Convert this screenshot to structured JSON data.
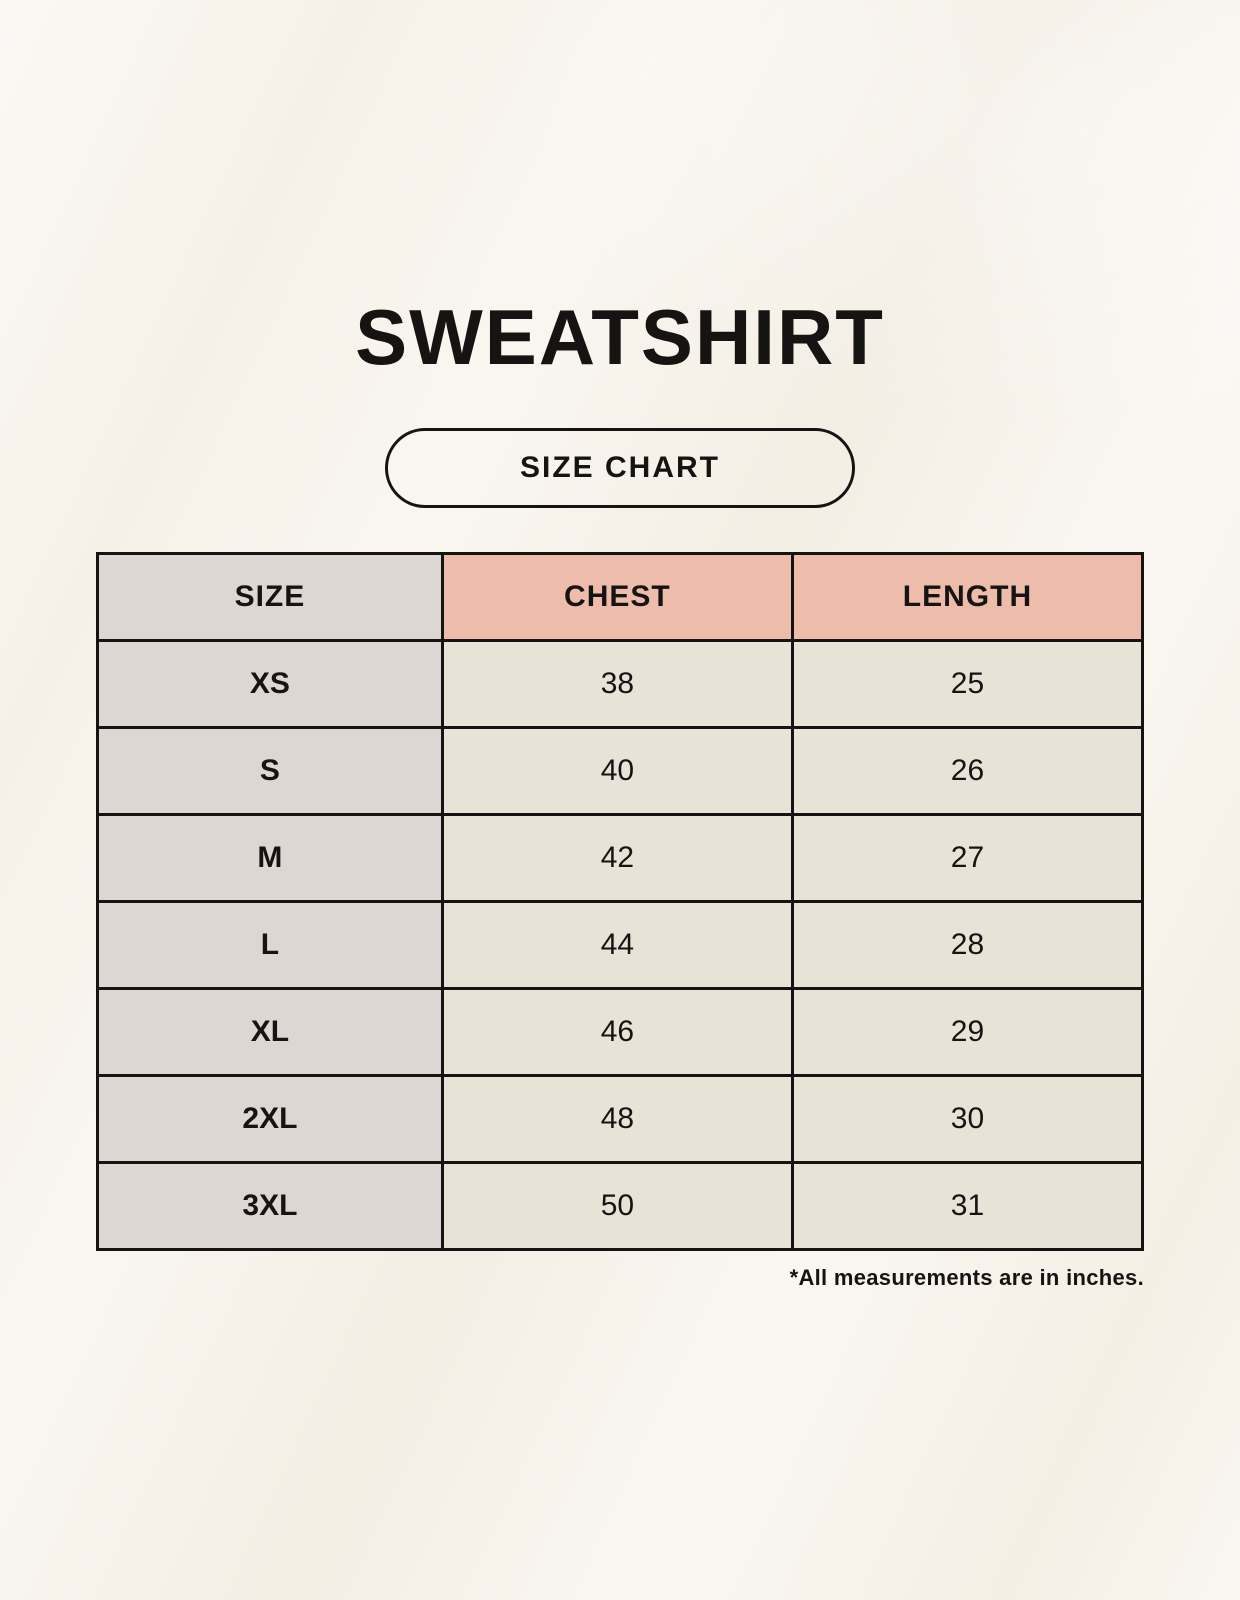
{
  "title": "SWEATSHIRT",
  "size_chart_button": {
    "label": "SIZE CHART"
  },
  "table": {
    "columns": {
      "size": "SIZE",
      "chest": "CHEST",
      "length": "LENGTH"
    },
    "rows": [
      {
        "size": "XS",
        "chest": "38",
        "length": "25"
      },
      {
        "size": "S",
        "chest": "40",
        "length": "26"
      },
      {
        "size": "M",
        "chest": "42",
        "length": "27"
      },
      {
        "size": "L",
        "chest": "44",
        "length": "28"
      },
      {
        "size": "XL",
        "chest": "46",
        "length": "29"
      },
      {
        "size": "2XL",
        "chest": "48",
        "length": "30"
      },
      {
        "size": "3XL",
        "chest": "50",
        "length": "31"
      }
    ]
  },
  "footnote": "*All measurements are in inches.",
  "colors": {
    "background": "#f6f1e8",
    "size_column_bg": "#ddd6d2",
    "measure_header_bg": "#eebcab",
    "value_cell_bg": "#e9e2d7",
    "border": "#161412",
    "text": "#161412"
  }
}
